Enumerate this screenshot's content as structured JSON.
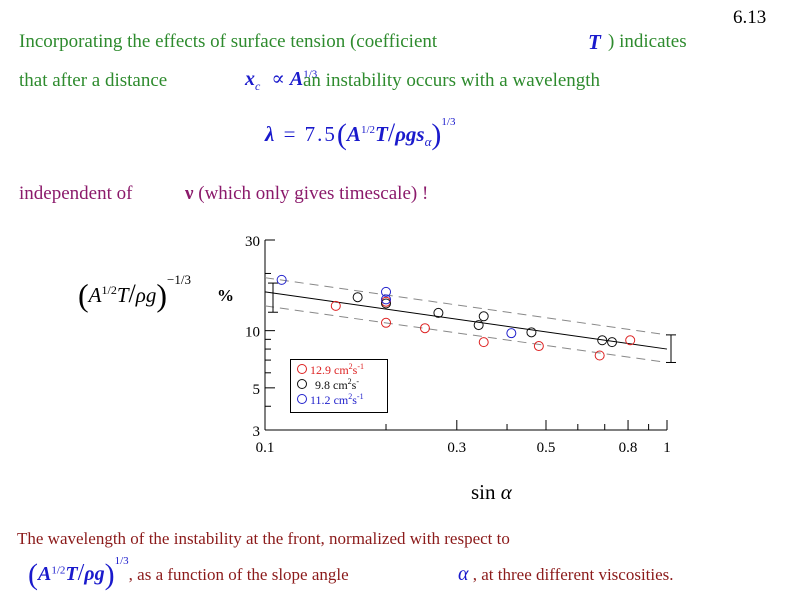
{
  "page_number": "6.13",
  "para1": {
    "line1_text": "Incorporating the effects of surface tension (coefficient",
    "line1_symbol": "T",
    "line1_end": ") indicates",
    "line2_text": "that after a distance",
    "xc_var": "x",
    "xc_sub": "c",
    "propto": "∝",
    "A_var": "A",
    "exp_1_3": "1/3",
    "line2_end": "an instability occurs with a wavelength"
  },
  "equation": {
    "lambda": "λ",
    "equals": "=",
    "coef": "7.5",
    "open": "(",
    "A": "A",
    "half": "1/2",
    "T": "T",
    "slash": "/",
    "rhogs": "ρgs",
    "alpha": "α",
    "close": ")",
    "third": "1/3"
  },
  "para2": {
    "text": "independent of",
    "nu": "ν",
    "end": "(which only gives timescale) !"
  },
  "ylabel": {
    "open": "(",
    "A": "A",
    "half": "1/2",
    "T": "T",
    "slash": "/",
    "rhog": "ρg",
    "close": ")",
    "exp": "−1/3",
    "pct": "%"
  },
  "xlabel": {
    "text": "sin",
    "alpha": "α"
  },
  "caption": {
    "line1": "The wavelength of the instability at the front, normalized with respect to",
    "open": "(",
    "A": "A",
    "half": "1/2",
    "T": "T",
    "slash": "/",
    "rhog": "ρg",
    "close": ")",
    "third": "1/3",
    "line2_mid": ", as a function of the slope angle",
    "alpha": "α",
    "line2_end": ", at three different viscosities."
  },
  "chart_data": {
    "type": "scatter",
    "x_scale": "log",
    "y_scale": "log",
    "xlim": [
      0.1,
      1
    ],
    "ylim": [
      3,
      30
    ],
    "xticks": [
      {
        "value": 0.1,
        "label": "0.1"
      },
      {
        "value": 0.3,
        "label": "0.3"
      },
      {
        "value": 0.5,
        "label": "0.5"
      },
      {
        "value": 0.8,
        "label": "0.8"
      },
      {
        "value": 1,
        "label": "1"
      }
    ],
    "yticks": [
      {
        "value": 3,
        "label": "3"
      },
      {
        "value": 5,
        "label": "5"
      },
      {
        "value": 10,
        "label": "10"
      },
      {
        "value": 30,
        "label": "30"
      }
    ],
    "series": [
      {
        "legend_value": "12.9",
        "legend_unit": "cm",
        "legend_exp": "2",
        "legend_s": "s",
        "legend_sexp": "-1",
        "color": "#dd2222",
        "points": [
          [
            0.15,
            13.5
          ],
          [
            0.2,
            14.2
          ],
          [
            0.2,
            11.0
          ],
          [
            0.25,
            10.3
          ],
          [
            0.35,
            8.7
          ],
          [
            0.48,
            8.3
          ],
          [
            0.68,
            7.4
          ],
          [
            0.81,
            8.9
          ]
        ]
      },
      {
        "legend_value": "9.8",
        "legend_unit": "cm",
        "legend_exp": "2",
        "legend_s": "s",
        "legend_sexp": "-",
        "color": "#111111",
        "points": [
          [
            0.17,
            15.0
          ],
          [
            0.2,
            13.9
          ],
          [
            0.27,
            12.4
          ],
          [
            0.34,
            10.7
          ],
          [
            0.35,
            11.9
          ],
          [
            0.46,
            9.8
          ],
          [
            0.69,
            8.9
          ],
          [
            0.73,
            8.7
          ]
        ]
      },
      {
        "legend_value": "11.2",
        "legend_unit": "cm",
        "legend_exp": "2",
        "legend_s": "s",
        "legend_sexp": "-1",
        "color": "#2222cc",
        "points": [
          [
            0.11,
            18.5
          ],
          [
            0.2,
            16.0
          ],
          [
            0.2,
            14.6
          ],
          [
            0.41,
            9.7
          ]
        ]
      }
    ],
    "fit_line": {
      "x": [
        0.1,
        1
      ],
      "y": [
        16.0,
        8.0
      ]
    },
    "band_upper": {
      "x": [
        0.1,
        1
      ],
      "y": [
        19.0,
        9.5
      ]
    },
    "band_lower": {
      "x": [
        0.1,
        1
      ],
      "y": [
        13.5,
        6.8
      ]
    },
    "error_bar_left": {
      "x": 0.1,
      "y_low": 12.5,
      "y_high": 17.8
    },
    "error_bar_right": {
      "x": 1,
      "y_low": 6.8,
      "y_high": 9.5
    },
    "legend_placement": "bottom-left"
  }
}
